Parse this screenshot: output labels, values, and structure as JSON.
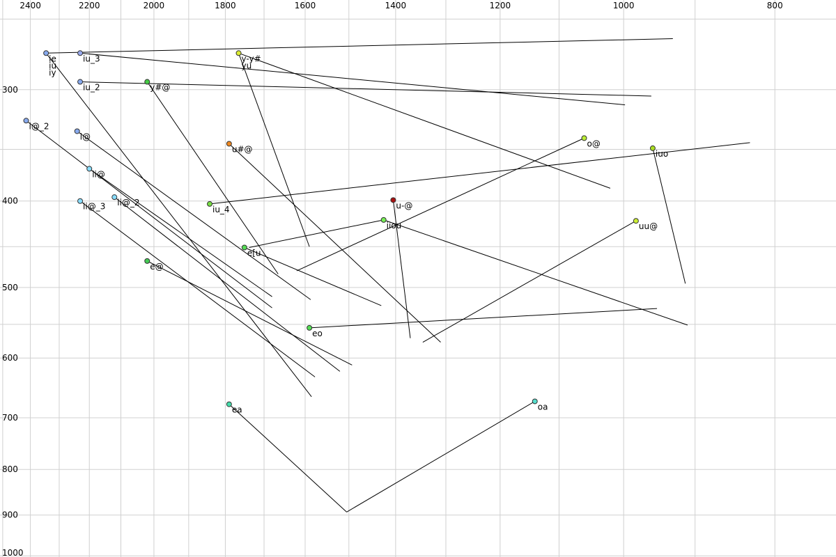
{
  "chart_data": {
    "type": "scatter",
    "title": "",
    "xlabel": "",
    "ylabel": "",
    "x_axis": {
      "position": "top",
      "reversed": true,
      "scale": "log",
      "range": [
        2510,
        731
      ]
    },
    "y_axis": {
      "position": "left",
      "reversed": true,
      "scale": "log",
      "range": [
        238,
        1003
      ]
    },
    "grid": true,
    "x_ticks": [
      2400,
      2200,
      2000,
      1800,
      1600,
      1400,
      1200,
      1000,
      800
    ],
    "y_ticks": [
      300,
      400,
      500,
      600,
      700,
      800,
      900,
      1000
    ],
    "points": [
      {
        "label": "ie",
        "x": 2345,
        "y": 273,
        "color": "#88aaee",
        "end": [
          930,
          263
        ]
      },
      {
        "label": "iu",
        "x": 2345,
        "y": 273,
        "color": "#88aaee"
      },
      {
        "label": "iy",
        "x": 2345,
        "y": 273,
        "color": "#88aaee"
      },
      {
        "label": "iu_3",
        "x": 2230,
        "y": 273,
        "color": "#99aaee",
        "end": [
          998,
          312
        ]
      },
      {
        "label": "iu_2",
        "x": 2230,
        "y": 294,
        "color": "#88aaee",
        "end": [
          960,
          305
        ]
      },
      {
        "label": "i@_2",
        "x": 2415,
        "y": 325,
        "color": "#88aaee",
        "end": [
          1680,
          527
        ]
      },
      {
        "label": "i@",
        "x": 2240,
        "y": 334,
        "color": "#88aaee",
        "end": [
          1587,
          516
        ]
      },
      {
        "label": "ii@",
        "x": 2200,
        "y": 368,
        "color": "#88ddff",
        "end": [
          1680,
          512
        ]
      },
      {
        "label": "ii@_3",
        "x": 2230,
        "y": 400,
        "color": "#88ddff",
        "end": [
          1577,
          630
        ]
      },
      {
        "label": "ii@_2",
        "x": 2120,
        "y": 396,
        "color": "#88ddff",
        "end": [
          1520,
          621
        ]
      },
      {
        "label": "y-y#",
        "x": 1765,
        "y": 273,
        "color": "#ddee33",
        "end": [
          1020,
          387
        ]
      },
      {
        "label": "yu",
        "x": 1765,
        "y": 273,
        "color": "#ddee33",
        "end": [
          1590,
          450
        ]
      },
      {
        "label": "y#@",
        "x": 2020,
        "y": 294,
        "color": "#44cc44",
        "end": [
          1665,
          483
        ]
      },
      {
        "label": "u#@",
        "x": 1790,
        "y": 345,
        "color": "#ee8822",
        "end": [
          1310,
          576
        ]
      },
      {
        "label": "iu_4",
        "x": 1842,
        "y": 403,
        "color": "#77dd44",
        "end": [
          830,
          344
        ]
      },
      {
        "label": "e[u",
        "x": 1750,
        "y": 451,
        "color": "#55dd55",
        "end": [
          1430,
          524
        ]
      },
      {
        "label": "e@",
        "x": 2020,
        "y": 467,
        "color": "#44cc55",
        "end": [
          1493,
          611
        ]
      },
      {
        "label": "eo",
        "x": 1590,
        "y": 555,
        "color": "#55dd55",
        "end": [
          952,
          528
        ]
      },
      {
        "label": "ea",
        "x": 1790,
        "y": 676,
        "color": "#44ddaa",
        "end": [
          1505,
          893
        ]
      },
      {
        "label": "oa",
        "x": 1140,
        "y": 671,
        "color": "#55ddcc",
        "end": [
          1505,
          893
        ]
      },
      {
        "label": "o@",
        "x": 1060,
        "y": 340,
        "color": "#bbee33",
        "end": [
          1620,
          479
        ]
      },
      {
        "label": "uu@",
        "x": 982,
        "y": 421,
        "color": "#ccee33",
        "end": [
          1345,
          576
        ]
      },
      {
        "label": "iuo",
        "x": 958,
        "y": 349,
        "color": "#aadd22",
        "end": [
          913,
          495
        ]
      },
      {
        "label": "iiou",
        "x": 1425,
        "y": 420,
        "color": "#77ee55",
        "end": [
          910,
          551
        ]
      },
      {
        "label": "u-@",
        "x": 1405,
        "y": 399,
        "color": "#aa1111",
        "end": [
          1370,
          570
        ]
      }
    ],
    "extra_segments": [
      {
        "from": [
          2345,
          273
        ],
        "to": [
          1585,
          663
        ]
      },
      {
        "from": [
          1425,
          420
        ],
        "to": [
          1738,
          451
        ]
      }
    ]
  }
}
